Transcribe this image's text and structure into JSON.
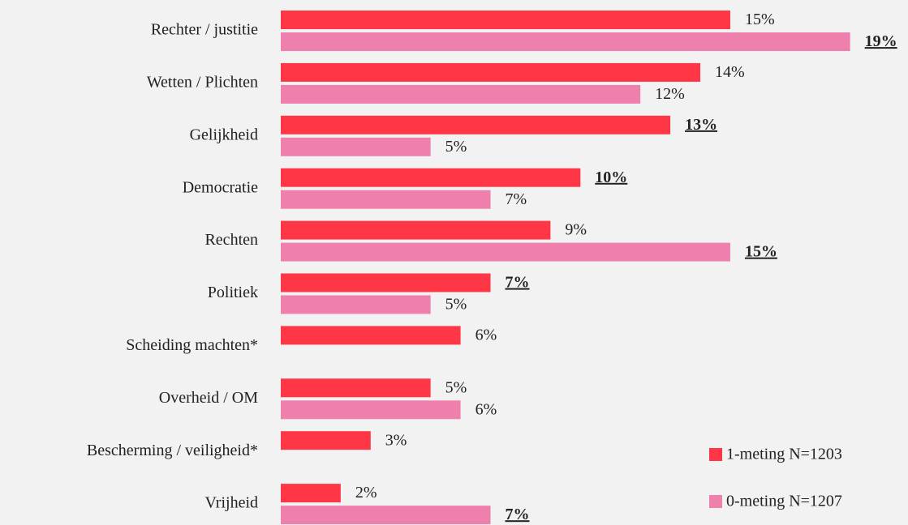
{
  "chart_data": {
    "type": "bar",
    "orientation": "horizontal",
    "categories": [
      "Rechter / justitie",
      "Wetten / Plichten",
      "Gelijkheid",
      "Democratie",
      "Rechten",
      "Politiek",
      "Scheiding machten*",
      "Overheid / OM",
      "Bescherming / veiligheid*",
      "Vrijheid"
    ],
    "series": [
      {
        "name": "1-meting N=1203",
        "color": "#ff3646",
        "values": [
          15,
          14,
          13,
          10,
          9,
          7,
          6,
          5,
          3,
          2
        ],
        "value_labels": [
          "15%",
          "14%",
          "13%",
          "10%",
          "9%",
          "7%",
          "6%",
          "5%",
          "3%",
          "2%"
        ],
        "highlight": [
          false,
          false,
          true,
          true,
          false,
          true,
          false,
          false,
          false,
          false
        ]
      },
      {
        "name": "0-meting N=1207",
        "color": "#ef80ae",
        "values": [
          19,
          12,
          5,
          7,
          15,
          5,
          null,
          6,
          null,
          7
        ],
        "value_labels": [
          "19%",
          "12%",
          "5%",
          "7%",
          "15%",
          "5%",
          null,
          "6%",
          null,
          "7%"
        ],
        "highlight": [
          true,
          false,
          false,
          false,
          true,
          false,
          false,
          false,
          false,
          true
        ]
      }
    ],
    "xlim": [
      0,
      20
    ],
    "legend": "lower right"
  }
}
